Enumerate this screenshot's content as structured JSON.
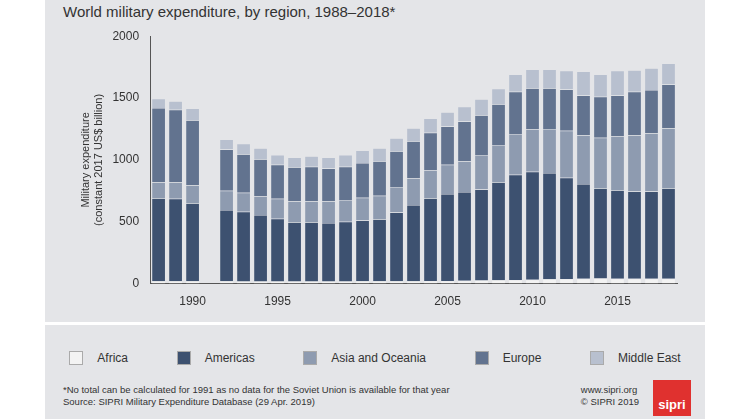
{
  "chart_data": {
    "type": "bar",
    "title": "World military expenditure, by region, 1988–2018*",
    "y_label": [
      "Military expenditure",
      "(constant 2017 US$ billion)"
    ],
    "categories": [
      null,
      null,
      1990,
      null,
      null,
      null,
      null,
      1995,
      null,
      null,
      null,
      null,
      2000,
      null,
      null,
      null,
      null,
      2005,
      null,
      null,
      null,
      null,
      2010,
      null,
      null,
      null,
      null,
      2015,
      null,
      null,
      null
    ],
    "series": [
      {
        "name": "Africa",
        "color": "#f3f3f3",
        "values": [
          20,
          20,
          20,
          null,
          18,
          17,
          17,
          16,
          16,
          16,
          16,
          17,
          18,
          18,
          19,
          20,
          21,
          22,
          23,
          25,
          28,
          30,
          32,
          35,
          37,
          40,
          42,
          40,
          40,
          40,
          40
        ]
      },
      {
        "name": "Americas",
        "color": "#3d5170",
        "values": [
          670,
          665,
          630,
          null,
          577,
          563,
          538,
          509,
          479,
          479,
          474,
          483,
          492,
          502,
          556,
          615,
          669,
          703,
          717,
          735,
          792,
          850,
          873,
          860,
          818,
          765,
          728,
          715,
          705,
          705,
          730
        ]
      },
      {
        "name": "Asia and Oceania",
        "color": "#8e9bb0",
        "values": [
          130,
          135,
          145,
          null,
          155,
          155,
          150,
          160,
          170,
          170,
          175,
          175,
          185,
          190,
          205,
          215,
          225,
          235,
          250,
          280,
          300,
          330,
          340,
          355,
          380,
          395,
          410,
          435,
          455,
          470,
          485
        ]
      },
      {
        "name": "Europe",
        "color": "#62738f",
        "values": [
          600,
          585,
          525,
          null,
          335,
          310,
          300,
          275,
          275,
          280,
          265,
          270,
          280,
          280,
          290,
          300,
          305,
          310,
          320,
          320,
          330,
          340,
          335,
          330,
          335,
          320,
          330,
          330,
          350,
          350,
          355
        ]
      },
      {
        "name": "Middle East",
        "color": "#b8c0cf",
        "values": [
          75,
          70,
          95,
          null,
          80,
          85,
          90,
          80,
          80,
          85,
          90,
          95,
          100,
          105,
          105,
          105,
          115,
          115,
          120,
          130,
          125,
          140,
          150,
          150,
          150,
          195,
          180,
          200,
          175,
          175,
          170
        ]
      }
    ],
    "stacked": true,
    "ylim": [
      0,
      2000
    ],
    "yticks": [
      0,
      500,
      1000,
      1500,
      2000
    ],
    "grid": false,
    "legend": "bottom",
    "footnote": "*No total can be calculated for 1991 as no data for the Soviet Union is available for that year",
    "source": "Source: SIPRI Military Expenditure Database (29 Apr. 2019)",
    "website": "www.sipri.org",
    "copyright": "© SIPRI 2019",
    "logo_text": "sipri"
  }
}
